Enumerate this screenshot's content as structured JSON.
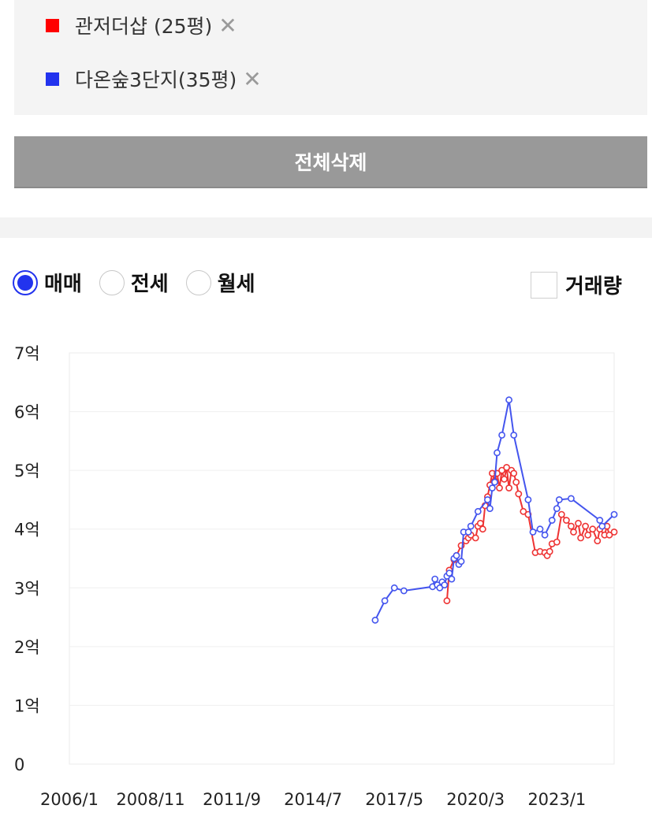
{
  "compare_list": [
    {
      "label": "관저더샵 (25평)",
      "color": "#ff0000",
      "remove": "✕"
    },
    {
      "label": "다온숲3단지(35평)",
      "color": "#2233ee",
      "remove": "✕"
    }
  ],
  "delete_all_label": "전체삭제",
  "trade_types": [
    {
      "label": "매매",
      "selected": true
    },
    {
      "label": "전세",
      "selected": false
    },
    {
      "label": "월세",
      "selected": false
    }
  ],
  "volume_label": "거래량",
  "chart_data": {
    "type": "line",
    "x_range": [
      "2006-01",
      "2025-01"
    ],
    "x_ticks": [
      "2006/1",
      "2008/11",
      "2011/9",
      "2014/7",
      "2017/5",
      "2020/3",
      "2023/1"
    ],
    "y_ticks": [
      "0",
      "1억",
      "2억",
      "3억",
      "4억",
      "5억",
      "6억",
      "7억"
    ],
    "ylim": [
      0,
      7
    ],
    "grid": true,
    "series": [
      {
        "color": "#ee3333",
        "points": [
          [
            "2019-03",
            2.78
          ],
          [
            "2019-04",
            3.3
          ],
          [
            "2019-06",
            3.48
          ],
          [
            "2019-07",
            3.55
          ],
          [
            "2019-09",
            3.72
          ],
          [
            "2019-11",
            3.8
          ],
          [
            "2019-12",
            3.85
          ],
          [
            "2020-01",
            3.9
          ],
          [
            "2020-03",
            3.85
          ],
          [
            "2020-04",
            4.05
          ],
          [
            "2020-05",
            4.1
          ],
          [
            "2020-06",
            4.0
          ],
          [
            "2020-07",
            4.4
          ],
          [
            "2020-08",
            4.55
          ],
          [
            "2020-09",
            4.75
          ],
          [
            "2020-10",
            4.95
          ],
          [
            "2020-11",
            4.82
          ],
          [
            "2020-12",
            4.95
          ],
          [
            "2021-01",
            4.7
          ],
          [
            "2021-02",
            5.0
          ],
          [
            "2021-03",
            4.85
          ],
          [
            "2021-04",
            5.05
          ],
          [
            "2021-05",
            4.7
          ],
          [
            "2021-06",
            5.0
          ],
          [
            "2021-07",
            4.95
          ],
          [
            "2021-08",
            4.8
          ],
          [
            "2021-09",
            4.6
          ],
          [
            "2021-11",
            4.3
          ],
          [
            "2022-01",
            4.25
          ],
          [
            "2022-04",
            3.6
          ],
          [
            "2022-06",
            3.62
          ],
          [
            "2022-08",
            3.6
          ],
          [
            "2022-09",
            3.55
          ],
          [
            "2022-10",
            3.62
          ],
          [
            "2022-11",
            3.75
          ],
          [
            "2023-01",
            3.78
          ],
          [
            "2023-03",
            4.25
          ],
          [
            "2023-05",
            4.15
          ],
          [
            "2023-07",
            4.05
          ],
          [
            "2023-08",
            3.95
          ],
          [
            "2023-10",
            4.1
          ],
          [
            "2023-11",
            3.85
          ],
          [
            "2024-01",
            4.05
          ],
          [
            "2024-02",
            3.9
          ],
          [
            "2024-04",
            4.0
          ],
          [
            "2024-06",
            3.8
          ],
          [
            "2024-07",
            4.0
          ],
          [
            "2024-09",
            3.9
          ],
          [
            "2024-10",
            4.05
          ],
          [
            "2024-11",
            3.9
          ],
          [
            "2025-01",
            3.95
          ]
        ]
      },
      {
        "color": "#4455ee",
        "points": [
          [
            "2016-09",
            2.45
          ],
          [
            "2017-01",
            2.78
          ],
          [
            "2017-05",
            3.0
          ],
          [
            "2017-09",
            2.95
          ],
          [
            "2018-09",
            3.02
          ],
          [
            "2018-10",
            3.15
          ],
          [
            "2018-11",
            3.05
          ],
          [
            "2018-12",
            3.0
          ],
          [
            "2019-01",
            3.1
          ],
          [
            "2019-02",
            3.05
          ],
          [
            "2019-03",
            3.2
          ],
          [
            "2019-04",
            3.25
          ],
          [
            "2019-05",
            3.15
          ],
          [
            "2019-06",
            3.5
          ],
          [
            "2019-07",
            3.55
          ],
          [
            "2019-08",
            3.4
          ],
          [
            "2019-09",
            3.45
          ],
          [
            "2019-10",
            3.95
          ],
          [
            "2019-12",
            3.95
          ],
          [
            "2020-01",
            4.05
          ],
          [
            "2020-04",
            4.3
          ],
          [
            "2020-08",
            4.5
          ],
          [
            "2020-09",
            4.35
          ],
          [
            "2020-10",
            4.7
          ],
          [
            "2020-11",
            4.8
          ],
          [
            "2020-12",
            5.3
          ],
          [
            "2021-02",
            5.6
          ],
          [
            "2021-05",
            6.2
          ],
          [
            "2021-07",
            5.6
          ],
          [
            "2022-01",
            4.5
          ],
          [
            "2022-03",
            3.95
          ],
          [
            "2022-06",
            4.0
          ],
          [
            "2022-08",
            3.9
          ],
          [
            "2022-11",
            4.15
          ],
          [
            "2023-01",
            4.35
          ],
          [
            "2023-02",
            4.5
          ],
          [
            "2023-07",
            4.52
          ],
          [
            "2024-07",
            4.15
          ],
          [
            "2024-08",
            4.05
          ],
          [
            "2025-01",
            4.25
          ]
        ]
      }
    ]
  }
}
